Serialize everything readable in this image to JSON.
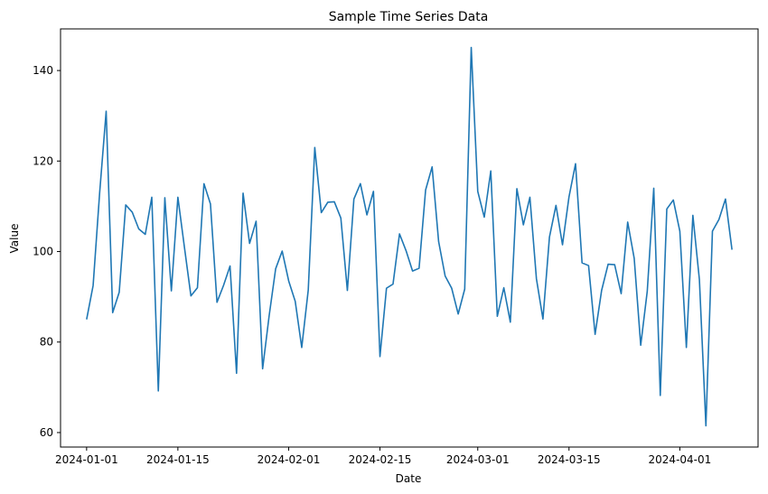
{
  "chart_data": {
    "type": "line",
    "title": "Sample Time Series Data",
    "xlabel": "Date",
    "ylabel": "Value",
    "x_start": "2024-01-01",
    "x_step_days": 1,
    "xlim": [
      "2023-12-28",
      "2024-04-13"
    ],
    "ylim": [
      56.8,
      149.2
    ],
    "x_ticks": [
      "2024-01-01",
      "2024-01-15",
      "2024-02-01",
      "2024-02-15",
      "2024-03-01",
      "2024-03-15",
      "2024-04-01"
    ],
    "y_ticks": [
      60,
      80,
      100,
      120,
      140
    ],
    "grid": false,
    "line_color": "#1f77b4",
    "series": [
      {
        "values": [
          85,
          92.5,
          113,
          131,
          86.5,
          91,
          110.3,
          108.7,
          105,
          103.8,
          112,
          69.2,
          111.9,
          91.3,
          112,
          101,
          90.2,
          92,
          115,
          110.5,
          88.8,
          92.5,
          96.8,
          73.1,
          112.9,
          101.8,
          106.7,
          74.1,
          85.8,
          96.2,
          100.1,
          93.5,
          89,
          78.8,
          91.5,
          123,
          108.6,
          110.9,
          111,
          107.4,
          91.4,
          111.6,
          115,
          108.1,
          113.3,
          76.8,
          91.9,
          92.8,
          103.9,
          100.2,
          95.7,
          96.3,
          113.6,
          118.7,
          102.2,
          94.6,
          91.9,
          86.2,
          91.7,
          145.1,
          113.3,
          107.6,
          117.8,
          85.7,
          92,
          84.4,
          113.9,
          105.9,
          112,
          94,
          85.1,
          103.2,
          110.2,
          101.5,
          112.1,
          119.4,
          97.5,
          96.9,
          81.7,
          91.4,
          97.2,
          97.1,
          90.7,
          106.5,
          98.5,
          79.3,
          91.2,
          114,
          68.2,
          109.4,
          111.4,
          104.5,
          78.8,
          108,
          93.8,
          61.5,
          104.5,
          107.1,
          111.6,
          100.4
        ]
      }
    ]
  }
}
